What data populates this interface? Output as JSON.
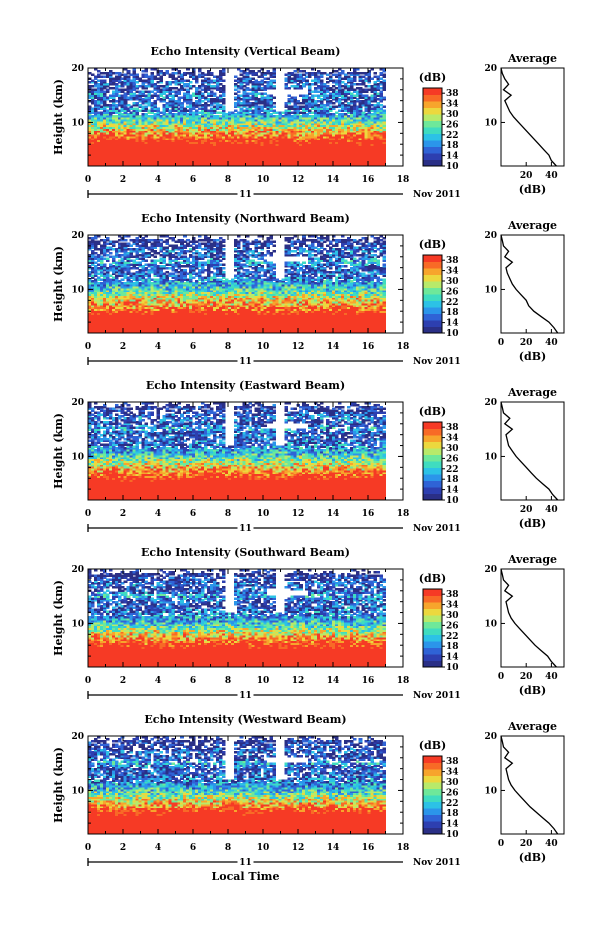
{
  "colors": {
    "scale": [
      "#2a2f86",
      "#2d3fb0",
      "#2f63d6",
      "#2b95ea",
      "#2cc2e6",
      "#3fdcc0",
      "#6ee89a",
      "#b8ea6a",
      "#ecd83e",
      "#f7a52c",
      "#f86a26",
      "#f63a25"
    ],
    "missing": "#ffffff",
    "line": "#000000"
  },
  "chart_data": [
    {
      "type": "heatmap",
      "title": "Echo Intensity (Vertical Beam)",
      "xlabel": "",
      "ylabel": "Height (km)",
      "xlim": [
        0,
        18
      ],
      "ylim": [
        2,
        20
      ],
      "xticks": [
        "0",
        "2",
        "4",
        "6",
        "8",
        "10",
        "12",
        "14",
        "16",
        "18"
      ],
      "yticks": [
        "20",
        "10"
      ],
      "date_row": {
        "day": "11",
        "month_year": "Nov 2011"
      },
      "colorbar": {
        "unit": "(dB)",
        "ticks": [
          "38",
          "34",
          "30",
          "26",
          "22",
          "18",
          "14",
          "10"
        ],
        "range": [
          10,
          40
        ]
      },
      "data_end_hour": 17,
      "profile": {
        "title": "Average",
        "xlabel": "(dB)",
        "xticks": [
          "20",
          "40"
        ],
        "yticks": [
          "20",
          "10"
        ],
        "heights": [
          2,
          3,
          4,
          5,
          6,
          7,
          8,
          9,
          10,
          11,
          12,
          13,
          14,
          15,
          16,
          17,
          18,
          19,
          20
        ],
        "values": [
          44,
          40,
          38,
          34,
          30,
          26,
          22,
          18,
          14,
          10,
          7,
          5,
          3,
          8,
          2,
          6,
          3,
          1,
          0
        ]
      }
    },
    {
      "type": "heatmap",
      "title": "Echo Intensity (Northward Beam)",
      "xlabel": "",
      "ylabel": "Height (km)",
      "xlim": [
        0,
        18
      ],
      "ylim": [
        2,
        20
      ],
      "xticks": [
        "0",
        "2",
        "4",
        "6",
        "8",
        "10",
        "12",
        "14",
        "16",
        "18"
      ],
      "yticks": [
        "20",
        "10"
      ],
      "date_row": {
        "day": "11",
        "month_year": "Nov 2011"
      },
      "colorbar": {
        "unit": "(dB)",
        "ticks": [
          "38",
          "34",
          "30",
          "26",
          "22",
          "18",
          "14",
          "10"
        ],
        "range": [
          10,
          40
        ]
      },
      "data_end_hour": 17,
      "profile": {
        "title": "Average",
        "xlabel": "(dB)",
        "xticks": [
          "0",
          "20",
          "40"
        ],
        "yticks": [
          "20",
          "10"
        ],
        "heights": [
          2,
          3,
          4,
          5,
          6,
          7,
          8,
          9,
          10,
          11,
          12,
          13,
          14,
          15,
          16,
          17,
          18,
          19,
          20
        ],
        "values": [
          45,
          42,
          38,
          32,
          26,
          22,
          20,
          16,
          12,
          9,
          7,
          5,
          4,
          9,
          3,
          6,
          2,
          1,
          0
        ]
      }
    },
    {
      "type": "heatmap",
      "title": "Echo Intensity (Eastward Beam)",
      "xlabel": "",
      "ylabel": "Height (km)",
      "xlim": [
        0,
        18
      ],
      "ylim": [
        2,
        20
      ],
      "xticks": [
        "0",
        "2",
        "4",
        "6",
        "8",
        "10",
        "12",
        "14",
        "16",
        "18"
      ],
      "yticks": [
        "20",
        "10"
      ],
      "date_row": {
        "day": "11",
        "month_year": "Nov 2011"
      },
      "colorbar": {
        "unit": "(dB)",
        "ticks": [
          "38",
          "34",
          "30",
          "26",
          "22",
          "18",
          "14",
          "10"
        ],
        "range": [
          10,
          40
        ]
      },
      "data_end_hour": 17,
      "profile": {
        "title": "Average",
        "xlabel": "(dB)",
        "xticks": [
          "20",
          "40"
        ],
        "yticks": [
          "20",
          "10"
        ],
        "heights": [
          2,
          3,
          4,
          5,
          6,
          7,
          8,
          9,
          10,
          11,
          12,
          13,
          14,
          15,
          16,
          17,
          18,
          19,
          20
        ],
        "values": [
          45,
          41,
          38,
          33,
          28,
          24,
          20,
          16,
          12,
          9,
          6,
          5,
          4,
          9,
          3,
          7,
          2,
          1,
          0
        ]
      }
    },
    {
      "type": "heatmap",
      "title": "Echo Intensity (Southward Beam)",
      "xlabel": "",
      "ylabel": "Height (km)",
      "xlim": [
        0,
        18
      ],
      "ylim": [
        2,
        20
      ],
      "xticks": [
        "0",
        "2",
        "4",
        "6",
        "8",
        "10",
        "12",
        "14",
        "16",
        "18"
      ],
      "yticks": [
        "20",
        "10"
      ],
      "date_row": {
        "day": "11",
        "month_year": "Nov 2011"
      },
      "colorbar": {
        "unit": "(dB)",
        "ticks": [
          "38",
          "34",
          "30",
          "26",
          "22",
          "18",
          "14",
          "10"
        ],
        "range": [
          10,
          40
        ]
      },
      "data_end_hour": 17,
      "profile": {
        "title": "Average",
        "xlabel": "(dB)",
        "xticks": [
          "0",
          "20",
          "40"
        ],
        "yticks": [
          "20",
          "10"
        ],
        "heights": [
          2,
          3,
          4,
          5,
          6,
          7,
          8,
          9,
          10,
          11,
          12,
          13,
          14,
          15,
          16,
          17,
          18,
          19,
          20
        ],
        "values": [
          44,
          40,
          37,
          32,
          27,
          23,
          19,
          15,
          11,
          8,
          6,
          5,
          4,
          9,
          3,
          6,
          2,
          1,
          0
        ]
      }
    },
    {
      "type": "heatmap",
      "title": "Echo Intensity (Westward Beam)",
      "xlabel": "Local Time",
      "ylabel": "Height (km)",
      "xlim": [
        0,
        18
      ],
      "ylim": [
        2,
        20
      ],
      "xticks": [
        "0",
        "2",
        "4",
        "6",
        "8",
        "10",
        "12",
        "14",
        "16",
        "18"
      ],
      "yticks": [
        "20",
        "10"
      ],
      "date_row": {
        "day": "11",
        "month_year": "Nov 2011"
      },
      "colorbar": {
        "unit": "(dB)",
        "ticks": [
          "38",
          "34",
          "30",
          "26",
          "22",
          "18",
          "14",
          "10"
        ],
        "range": [
          10,
          40
        ]
      },
      "data_end_hour": 17,
      "profile": {
        "title": "Average",
        "xlabel": "(dB)",
        "xticks": [
          "0",
          "20",
          "40"
        ],
        "yticks": [
          "20",
          "10"
        ],
        "heights": [
          2,
          3,
          4,
          5,
          6,
          7,
          8,
          9,
          10,
          11,
          12,
          13,
          14,
          15,
          16,
          17,
          18,
          19,
          20
        ],
        "values": [
          45,
          42,
          38,
          33,
          28,
          23,
          19,
          15,
          11,
          8,
          6,
          5,
          4,
          9,
          3,
          6,
          2,
          1,
          0
        ]
      }
    }
  ]
}
